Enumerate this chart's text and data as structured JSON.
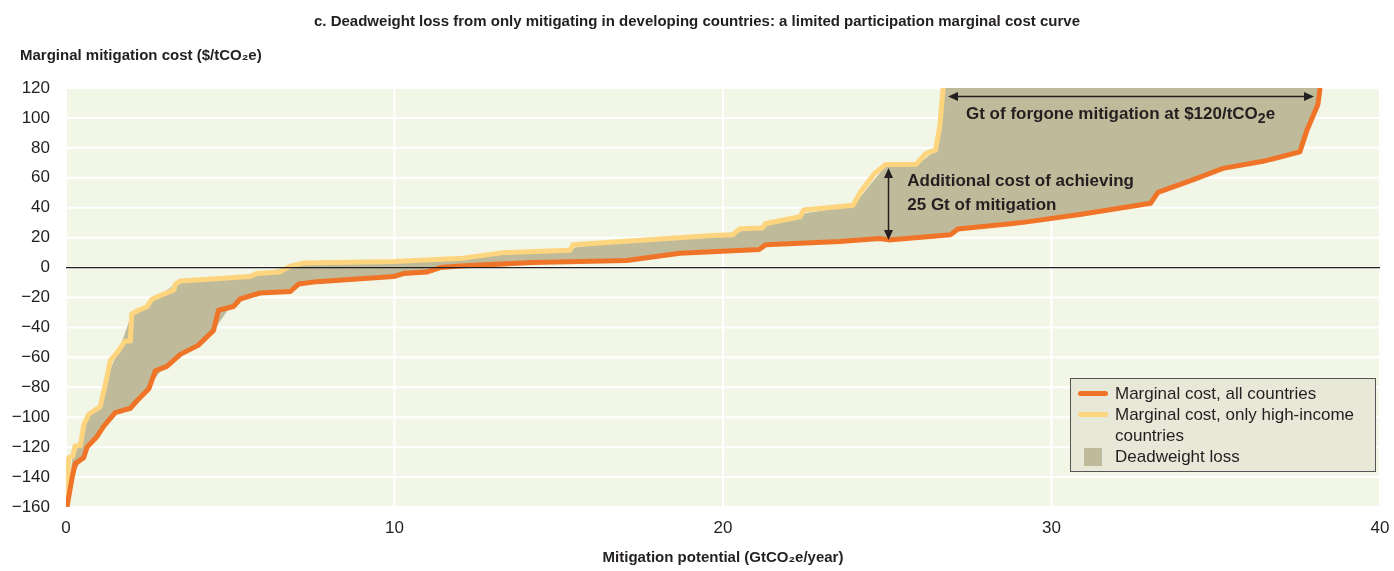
{
  "chart_data": {
    "type": "line",
    "title": "c. Deadweight loss from only mitigating in developing countries: a limited participation marginal cost curve",
    "xlabel": "Mitigation potential (GtCO₂e/year)",
    "ylabel": "Marginal mitigation cost ($/tCO₂e)",
    "xlim": [
      0,
      40
    ],
    "xticks": [
      0,
      10,
      20,
      30,
      40
    ],
    "ylim": [
      -160,
      120
    ],
    "yticks": [
      {
        "value": -160,
        "label": "−160"
      },
      {
        "value": -140,
        "label": "−140"
      },
      {
        "value": -120,
        "label": "−120"
      },
      {
        "value": -100,
        "label": "−100"
      },
      {
        "value": -80,
        "label": "−80"
      },
      {
        "value": -60,
        "label": "−60"
      },
      {
        "value": -40,
        "label": "−40"
      },
      {
        "value": -20,
        "label": "−20"
      },
      0,
      20,
      40,
      60,
      80,
      100,
      120
    ],
    "grid": true,
    "legend": "bottom right",
    "marker": "none",
    "line_style": "solid",
    "ref_lines": [
      {
        "axis": "y",
        "value": 0,
        "color": "#231f20"
      }
    ],
    "annotations": [
      "Gt of forgone mitigation at $120/tCO$_{2}$e",
      {
        "text": "Additional cost of achieving 25 Gt of mitigation",
        "x": 24.94,
        "y": 68.8
      }
    ],
    "series": [
      {
        "name": "Deadweight loss",
        "type": "area",
        "color": "#bfbb9a",
        "x": [
          0.03,
          0.2,
          0.5,
          0.7,
          1.0,
          1.3,
          1.6,
          2.0,
          2.5,
          3.0,
          3.5,
          4.0,
          4.5,
          5.0,
          5.5,
          6.0,
          6.8,
          7.2,
          8,
          10,
          11.4,
          12,
          13.3,
          15.4,
          17,
          18.7,
          20.5,
          21.3,
          22.4,
          23,
          24,
          24.5,
          25,
          26,
          26.5,
          26.7,
          27.2,
          29.1,
          30.9,
          33.0,
          33.3,
          34.3,
          35.2,
          36.4,
          37.6,
          37.8,
          38.1,
          38.17,
          38.17,
          38.1,
          37.8,
          37.6,
          36.4,
          35.2,
          34.3,
          33.3,
          33.0,
          30.9,
          29.1,
          27.2,
          26.7,
          26.5,
          26,
          25,
          24.5,
          24,
          23,
          22.4,
          21.3,
          20.5,
          18.7,
          17,
          15.4,
          13.3,
          12,
          11.4,
          10,
          8,
          7.2,
          6.8,
          6.0,
          5.5,
          5.0,
          4.5,
          4.0,
          3.5,
          3.0,
          2.5,
          2.0,
          1.6,
          1.3,
          1.0,
          0.7,
          0.5,
          0.2
        ],
        "values": [
          -160,
          -126,
          -110,
          -98,
          -93,
          -70,
          -56,
          -31,
          -25,
          -16,
          -9,
          -8,
          -7,
          -7,
          -6,
          -4,
          1,
          3,
          3,
          4,
          5,
          6,
          10,
          13,
          18,
          20,
          24,
          29,
          36,
          38,
          42,
          56,
          69,
          70,
          79,
          120,
          120,
          120,
          120,
          120,
          120,
          120,
          120,
          120,
          120,
          120,
          120,
          120,
          119,
          109,
          92,
          77,
          71,
          66,
          59,
          50,
          43,
          35.6,
          30,
          25.8,
          21.5,
          21,
          20,
          18.5,
          18,
          17.5,
          16.5,
          16,
          15,
          11,
          9.6,
          4.7,
          3.8,
          2.5,
          1,
          0,
          -5,
          -9,
          -11,
          -16,
          -17,
          -20,
          -26,
          -42,
          -52,
          -58,
          -66,
          -80,
          -94,
          -97,
          -103,
          -112,
          -120,
          -127,
          -140
        ]
      },
      {
        "name": "Marginal cost, all countries",
        "color": "#f07427",
        "x": [
          0.03,
          0.18,
          0.28,
          0.54,
          0.64,
          0.94,
          1.15,
          1.5,
          1.96,
          2.16,
          2.52,
          2.72,
          3.07,
          3.48,
          4.02,
          4.49,
          4.64,
          5.1,
          5.3,
          5.9,
          6.83,
          7.08,
          7.64,
          9.97,
          10.27,
          10.98,
          11.39,
          12,
          14.22,
          17.06,
          18.69,
          21.1,
          21.3,
          23.55,
          24.77,
          25.05,
          26.93,
          27.15,
          29.14,
          30.91,
          33.02,
          33.24,
          34.34,
          35.22,
          36.44,
          37.56,
          37.78,
          38.11,
          38.17
        ],
        "values": [
          -160,
          -141,
          -131,
          -127,
          -120,
          -113,
          -106,
          -97,
          -94,
          -89,
          -81,
          -69,
          -66,
          -58,
          -52,
          -42,
          -28.5,
          -26,
          -21,
          -17,
          -16,
          -11,
          -9.4,
          -6,
          -4,
          -3,
          0,
          1,
          3.4,
          4.7,
          9.6,
          12,
          15.3,
          17.5,
          19.4,
          18.5,
          22,
          25.8,
          30.2,
          35.6,
          43,
          50.3,
          59,
          66.3,
          71,
          77.3,
          92,
          109,
          119
        ]
      },
      {
        "name": "Marginal cost, only high-income countries",
        "color": "#fdd57e",
        "x": [
          0.03,
          0.08,
          0.21,
          0.28,
          0.44,
          0.54,
          0.69,
          1.04,
          1.25,
          1.35,
          1.55,
          1.8,
          1.96,
          2.0,
          2.16,
          2.47,
          2.62,
          3.28,
          3.33,
          3.48,
          5.6,
          5.8,
          6.5,
          6.83,
          7.23,
          9.97,
          12.09,
          13.31,
          15.34,
          15.44,
          17.27,
          19.7,
          20.3,
          20.52,
          21.2,
          21.3,
          22.35,
          22.45,
          23.96,
          24.17,
          24.6,
          24.94,
          25.88,
          26.16,
          26.47,
          26.6,
          26.7
        ],
        "values": [
          -160,
          -127,
          -126,
          -119,
          -119,
          -105,
          -98,
          -93,
          -73,
          -62,
          -57,
          -49,
          -49,
          -31,
          -29,
          -26,
          -21,
          -15,
          -11,
          -9,
          -6,
          -4,
          -3,
          1,
          3,
          4,
          6.3,
          10,
          11.5,
          15.3,
          18,
          21.4,
          22,
          26,
          26.5,
          29.4,
          34,
          38.4,
          41.6,
          50,
          62.6,
          68.8,
          69,
          76,
          78.6,
          94.4,
          120
        ]
      }
    ]
  }
}
